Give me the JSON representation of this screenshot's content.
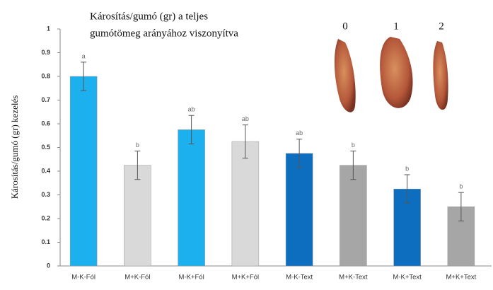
{
  "chart_data": {
    "type": "bar",
    "title": [
      "Károsítás/gumó (gr) a teljes",
      "gumótömeg arányához viszonyítva"
    ],
    "ylabel": "Károsítás/gumó (gr) kezelés",
    "categories": [
      "M-K-Fól",
      "M+K-Fól",
      "M-K+Fól",
      "M+K+Fól",
      "M-K-Text",
      "M+K-Text",
      "M-K+Text",
      "M+K+Text"
    ],
    "values": [
      0.8,
      0.425,
      0.575,
      0.525,
      0.475,
      0.425,
      0.325,
      0.25
    ],
    "errors": [
      0.06,
      0.06,
      0.06,
      0.07,
      0.06,
      0.06,
      0.06,
      0.06
    ],
    "annotations": [
      "a",
      "b",
      "ab",
      "ab",
      "ab",
      "b",
      "b",
      "b"
    ],
    "colors": [
      "#1cb1ee",
      "#d9d9d9",
      "#1cb1ee",
      "#d9d9d9",
      "#0d6ebf",
      "#a6a6a6",
      "#0d6ebf",
      "#a6a6a6"
    ],
    "ylim": [
      0,
      1
    ],
    "yticks": [
      0,
      0.1,
      0.2,
      0.3,
      0.4,
      0.5,
      0.6,
      0.7,
      0.8,
      0.9,
      1
    ],
    "image_labels": [
      "0",
      "1",
      "2"
    ]
  }
}
